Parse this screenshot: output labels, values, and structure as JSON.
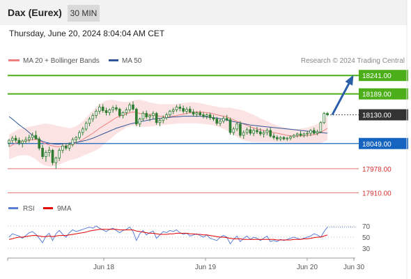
{
  "header": {
    "title": "Dax (Eurex)",
    "interval": "30 MIN",
    "timestamp": "Thursday, June 20, 2024 8:04:04 AM CET"
  },
  "legend": {
    "items": [
      {
        "label": "MA 20 + Bollinger Bands",
        "color": "#f08080"
      },
      {
        "label": "MA 50",
        "color": "#2f5597"
      }
    ],
    "credit": "Research © 2024 Trading Central"
  },
  "colors": {
    "up": "#2e7d32",
    "down": "#2e7d32",
    "resistance": "#4caf1a",
    "support": "#1565c0",
    "red_levels": "#e57373",
    "current": "#333333",
    "arrow": "#2a5ea8",
    "rsi": "#5b7fd6",
    "rsi_ma": "#e00000"
  },
  "chart_data": [
    {
      "type": "candlestick",
      "title": "Dax (Eurex)",
      "x_labels": [
        "Jun 18",
        "Jun 19",
        "Jun 20",
        "Jun 30"
      ],
      "levels": [
        {
          "value": 18241.0,
          "label": "18241.00",
          "kind": "resistance"
        },
        {
          "value": 18189.0,
          "label": "18189.00",
          "kind": "resistance"
        },
        {
          "value": 18130.0,
          "label": "18130.00",
          "kind": "current"
        },
        {
          "value": 18049.0,
          "label": "18049.00",
          "kind": "support"
        },
        {
          "value": 17978.0,
          "label": "17978.00",
          "kind": "red"
        },
        {
          "value": 17910.0,
          "label": "17910.00",
          "kind": "red"
        }
      ],
      "ohlc": [
        [
          18050,
          18062,
          18040,
          18058
        ],
        [
          18058,
          18070,
          18050,
          18064
        ],
        [
          18064,
          18072,
          18052,
          18058
        ],
        [
          18058,
          18066,
          18044,
          18050
        ],
        [
          18050,
          18060,
          18038,
          18056
        ],
        [
          18056,
          18068,
          18048,
          18060
        ],
        [
          18060,
          18074,
          18052,
          18066
        ],
        [
          18066,
          18080,
          18058,
          18072
        ],
        [
          18072,
          18085,
          18060,
          18062
        ],
        [
          18062,
          18068,
          18030,
          18036
        ],
        [
          18036,
          18046,
          18005,
          18012
        ],
        [
          18012,
          18030,
          17998,
          18024
        ],
        [
          18024,
          18040,
          18012,
          18030
        ],
        [
          18030,
          18034,
          17988,
          17995
        ],
        [
          17995,
          18012,
          17978,
          18008
        ],
        [
          18008,
          18036,
          18000,
          18030
        ],
        [
          18030,
          18048,
          18022,
          18042
        ],
        [
          18042,
          18050,
          18030,
          18036
        ],
        [
          18036,
          18052,
          18028,
          18046
        ],
        [
          18046,
          18066,
          18040,
          18060
        ],
        [
          18060,
          18070,
          18050,
          18066
        ],
        [
          18066,
          18086,
          18060,
          18080
        ],
        [
          18080,
          18096,
          18072,
          18090
        ],
        [
          18090,
          18112,
          18084,
          18106
        ],
        [
          18106,
          18124,
          18098,
          18118
        ],
        [
          18118,
          18134,
          18110,
          18128
        ],
        [
          18128,
          18146,
          18120,
          18140
        ],
        [
          18140,
          18160,
          18132,
          18152
        ],
        [
          18152,
          18160,
          18136,
          18142
        ],
        [
          18142,
          18150,
          18128,
          18136
        ],
        [
          18136,
          18148,
          18128,
          18144
        ],
        [
          18144,
          18156,
          18136,
          18150
        ],
        [
          18150,
          18158,
          18140,
          18146
        ],
        [
          18146,
          18150,
          18122,
          18128
        ],
        [
          18128,
          18140,
          18120,
          18136
        ],
        [
          18136,
          18150,
          18128,
          18144
        ],
        [
          18144,
          18164,
          18138,
          18158
        ],
        [
          18158,
          18168,
          18142,
          18146
        ],
        [
          18146,
          18150,
          18098,
          18104
        ],
        [
          18104,
          18122,
          18096,
          18118
        ],
        [
          18118,
          18140,
          18112,
          18134
        ],
        [
          18134,
          18142,
          18118,
          18124
        ],
        [
          18124,
          18132,
          18112,
          18128
        ],
        [
          18128,
          18140,
          18118,
          18134
        ],
        [
          18134,
          18138,
          18102,
          18108
        ],
        [
          18108,
          18120,
          18098,
          18114
        ],
        [
          18114,
          18128,
          18106,
          18122
        ],
        [
          18122,
          18136,
          18116,
          18130
        ],
        [
          18130,
          18144,
          18124,
          18140
        ],
        [
          18140,
          18150,
          18132,
          18144
        ],
        [
          18144,
          18158,
          18138,
          18152
        ],
        [
          18152,
          18160,
          18140,
          18148
        ],
        [
          18148,
          18156,
          18134,
          18140
        ],
        [
          18140,
          18152,
          18132,
          18146
        ],
        [
          18146,
          18154,
          18134,
          18138
        ],
        [
          18138,
          18146,
          18126,
          18132
        ],
        [
          18132,
          18140,
          18124,
          18136
        ],
        [
          18136,
          18142,
          18126,
          18130
        ],
        [
          18130,
          18138,
          18120,
          18126
        ],
        [
          18126,
          18134,
          18118,
          18130
        ],
        [
          18130,
          18136,
          18116,
          18122
        ],
        [
          18122,
          18130,
          18112,
          18118
        ],
        [
          18118,
          18124,
          18100,
          18106
        ],
        [
          18106,
          18118,
          18098,
          18112
        ],
        [
          18112,
          18126,
          18106,
          18120
        ],
        [
          18120,
          18130,
          18112,
          18116
        ],
        [
          18116,
          18122,
          18074,
          18080
        ],
        [
          18080,
          18096,
          18072,
          18090
        ],
        [
          18090,
          18110,
          18084,
          18104
        ],
        [
          18104,
          18112,
          18066,
          18072
        ],
        [
          18072,
          18086,
          18062,
          18080
        ],
        [
          18080,
          18094,
          18074,
          18088
        ],
        [
          18088,
          18098,
          18072,
          18078
        ],
        [
          18078,
          18092,
          18070,
          18086
        ],
        [
          18086,
          18096,
          18076,
          18082
        ],
        [
          18082,
          18092,
          18070,
          18076
        ],
        [
          18076,
          18086,
          18066,
          18080
        ],
        [
          18080,
          18092,
          18072,
          18086
        ],
        [
          18086,
          18094,
          18066,
          18070
        ],
        [
          18070,
          18078,
          18060,
          18066
        ],
        [
          18066,
          18072,
          18056,
          18062
        ],
        [
          18062,
          18070,
          18056,
          18066
        ],
        [
          18066,
          18070,
          18058,
          18062
        ],
        [
          18062,
          18068,
          18056,
          18064
        ],
        [
          18064,
          18072,
          18058,
          18068
        ],
        [
          18068,
          18076,
          18064,
          18072
        ],
        [
          18072,
          18080,
          18066,
          18076
        ],
        [
          18076,
          18084,
          18068,
          18072
        ],
        [
          18072,
          18080,
          18066,
          18076
        ],
        [
          18076,
          18084,
          18068,
          18078
        ],
        [
          18078,
          18090,
          18070,
          18086
        ],
        [
          18086,
          18094,
          18074,
          18078
        ],
        [
          18078,
          18088,
          18072,
          18082
        ],
        [
          18082,
          18112,
          18078,
          18108
        ],
        [
          18108,
          18138,
          18104,
          18134
        ],
        [
          18134,
          18138,
          18126,
          18130
        ]
      ],
      "ma20": [
        18040,
        18045,
        18050,
        18054,
        18055,
        18056,
        18058,
        18060,
        18060,
        18058,
        18052,
        18048,
        18045,
        18042,
        18040,
        18040,
        18041,
        18042,
        18044,
        18046,
        18050,
        18055,
        18060,
        18066,
        18072,
        18078,
        18085,
        18092,
        18098,
        18104,
        18110,
        18116,
        18122,
        18126,
        18130,
        18133,
        18136,
        18138,
        18136,
        18134,
        18133,
        18132,
        18131,
        18130,
        18128,
        18126,
        18125,
        18124,
        18125,
        18126,
        18128,
        18130,
        18132,
        18134,
        18136,
        18137,
        18138,
        18138,
        18137,
        18136,
        18135,
        18133,
        18130,
        18128,
        18126,
        18124,
        18120,
        18116,
        18112,
        18108,
        18104,
        18100,
        18096,
        18093,
        18090,
        18088,
        18086,
        18084,
        18082,
        18080,
        18078,
        18076,
        18074,
        18072,
        18071,
        18070,
        18070,
        18070,
        18071,
        18072,
        18073,
        18074,
        18076,
        18080,
        18086,
        18092
      ],
      "bb_upper": [
        18075,
        18080,
        18085,
        18090,
        18092,
        18094,
        18096,
        18098,
        18100,
        18102,
        18104,
        18105,
        18104,
        18102,
        18100,
        18098,
        18096,
        18094,
        18092,
        18094,
        18098,
        18104,
        18112,
        18122,
        18132,
        18142,
        18152,
        18160,
        18166,
        18170,
        18172,
        18172,
        18170,
        18168,
        18166,
        18166,
        18167,
        18170,
        18172,
        18172,
        18170,
        18168,
        18165,
        18163,
        18161,
        18160,
        18160,
        18160,
        18160,
        18160,
        18161,
        18162,
        18163,
        18164,
        18165,
        18165,
        18164,
        18163,
        18161,
        18159,
        18157,
        18155,
        18153,
        18151,
        18150,
        18150,
        18150,
        18148,
        18146,
        18144,
        18142,
        18138,
        18134,
        18130,
        18125,
        18120,
        18116,
        18112,
        18108,
        18104,
        18100,
        18097,
        18095,
        18093,
        18091,
        18090,
        18090,
        18091,
        18092,
        18094,
        18097,
        18100,
        18104,
        18110,
        18118,
        18126
      ],
      "bb_lower": [
        18005,
        18008,
        18012,
        18015,
        18016,
        18016,
        18014,
        18010,
        18004,
        17996,
        17990,
        17986,
        17984,
        17984,
        17986,
        17990,
        17994,
        17998,
        18002,
        18004,
        18006,
        18010,
        18014,
        18018,
        18022,
        18026,
        18030,
        18036,
        18044,
        18052,
        18060,
        18068,
        18076,
        18082,
        18088,
        18094,
        18098,
        18100,
        18098,
        18096,
        18096,
        18096,
        18097,
        18098,
        18099,
        18100,
        18101,
        18102,
        18103,
        18104,
        18105,
        18106,
        18106,
        18106,
        18106,
        18106,
        18106,
        18105,
        18104,
        18103,
        18102,
        18100,
        18097,
        18094,
        18090,
        18086,
        18080,
        18074,
        18068,
        18062,
        18058,
        18056,
        18054,
        18053,
        18053,
        18053,
        18053,
        18053,
        18053,
        18053,
        18053,
        18053,
        18052,
        18051,
        18050,
        18050,
        18050,
        18049,
        18049,
        18049,
        18048,
        18048,
        18048,
        18050,
        18054,
        18058
      ],
      "ma50": [
        18125,
        18118,
        18110,
        18102,
        18095,
        18088,
        18080,
        18072,
        18065,
        18060,
        18055,
        18052,
        18050,
        18048,
        18047,
        18047,
        18048,
        18049,
        18050,
        18051,
        18052,
        18054,
        18056,
        18058,
        18061,
        18064,
        18068,
        18072,
        18076,
        18080,
        18084,
        18088,
        18092,
        18095,
        18098,
        18101,
        18104,
        18106,
        18108,
        18110,
        18112,
        18114,
        18116,
        18118,
        18119,
        18120,
        18121,
        18122,
        18123,
        18124,
        18124,
        18125,
        18126,
        18126,
        18126,
        18126,
        18126,
        18126,
        18125,
        18124,
        18123,
        18122,
        18121,
        18119,
        18117,
        18115,
        18113,
        18111,
        18109,
        18107,
        18105,
        18103,
        18101,
        18100,
        18099,
        18098,
        18097,
        18096,
        18095,
        18094,
        18093,
        18092,
        18091,
        18090,
        18089,
        18088,
        18087,
        18086,
        18085,
        18084,
        18083,
        18082,
        18081,
        18080,
        18079,
        18078
      ],
      "ylim": [
        17895,
        18265
      ],
      "target_arrow": {
        "from": 18130,
        "to": 18241
      }
    },
    {
      "type": "line",
      "title": "RSI",
      "legend": [
        "RSI",
        "9MA"
      ],
      "ticks": [
        70,
        50,
        30
      ],
      "ylim": [
        20,
        80
      ],
      "rsi": [
        50,
        56,
        54,
        52,
        48,
        53,
        58,
        60,
        55,
        48,
        40,
        52,
        57,
        44,
        56,
        62,
        55,
        50,
        58,
        63,
        60,
        62,
        64,
        66,
        68,
        66,
        70,
        66,
        63,
        60,
        64,
        66,
        62,
        58,
        62,
        64,
        68,
        60,
        44,
        56,
        62,
        54,
        58,
        61,
        48,
        54,
        60,
        58,
        62,
        60,
        63,
        58,
        55,
        57,
        52,
        54,
        56,
        53,
        50,
        54,
        48,
        46,
        44,
        50,
        53,
        50,
        38,
        46,
        52,
        42,
        48,
        52,
        46,
        50,
        48,
        44,
        48,
        52,
        42,
        44,
        42,
        46,
        44,
        46,
        48,
        50,
        48,
        46,
        48,
        50,
        52,
        56,
        54,
        50,
        60,
        68
      ],
      "rsi_ma": [
        46,
        47,
        49,
        50,
        50,
        51,
        52,
        53,
        53,
        52,
        51,
        51,
        52,
        51,
        52,
        53,
        53,
        53,
        54,
        55,
        56,
        57,
        58,
        59,
        61,
        62,
        63,
        64,
        64,
        64,
        64,
        64,
        64,
        63,
        63,
        63,
        63,
        63,
        61,
        60,
        59,
        58,
        57,
        57,
        56,
        55,
        55,
        55,
        56,
        56,
        57,
        57,
        57,
        57,
        56,
        56,
        55,
        55,
        54,
        54,
        53,
        52,
        51,
        50,
        50,
        49,
        48,
        47,
        47,
        47,
        46,
        46,
        46,
        46,
        46,
        46,
        46,
        46,
        46,
        46,
        45,
        45,
        45,
        45,
        45,
        46,
        46,
        46,
        47,
        47,
        48,
        49,
        50,
        50,
        52,
        54
      ]
    }
  ]
}
